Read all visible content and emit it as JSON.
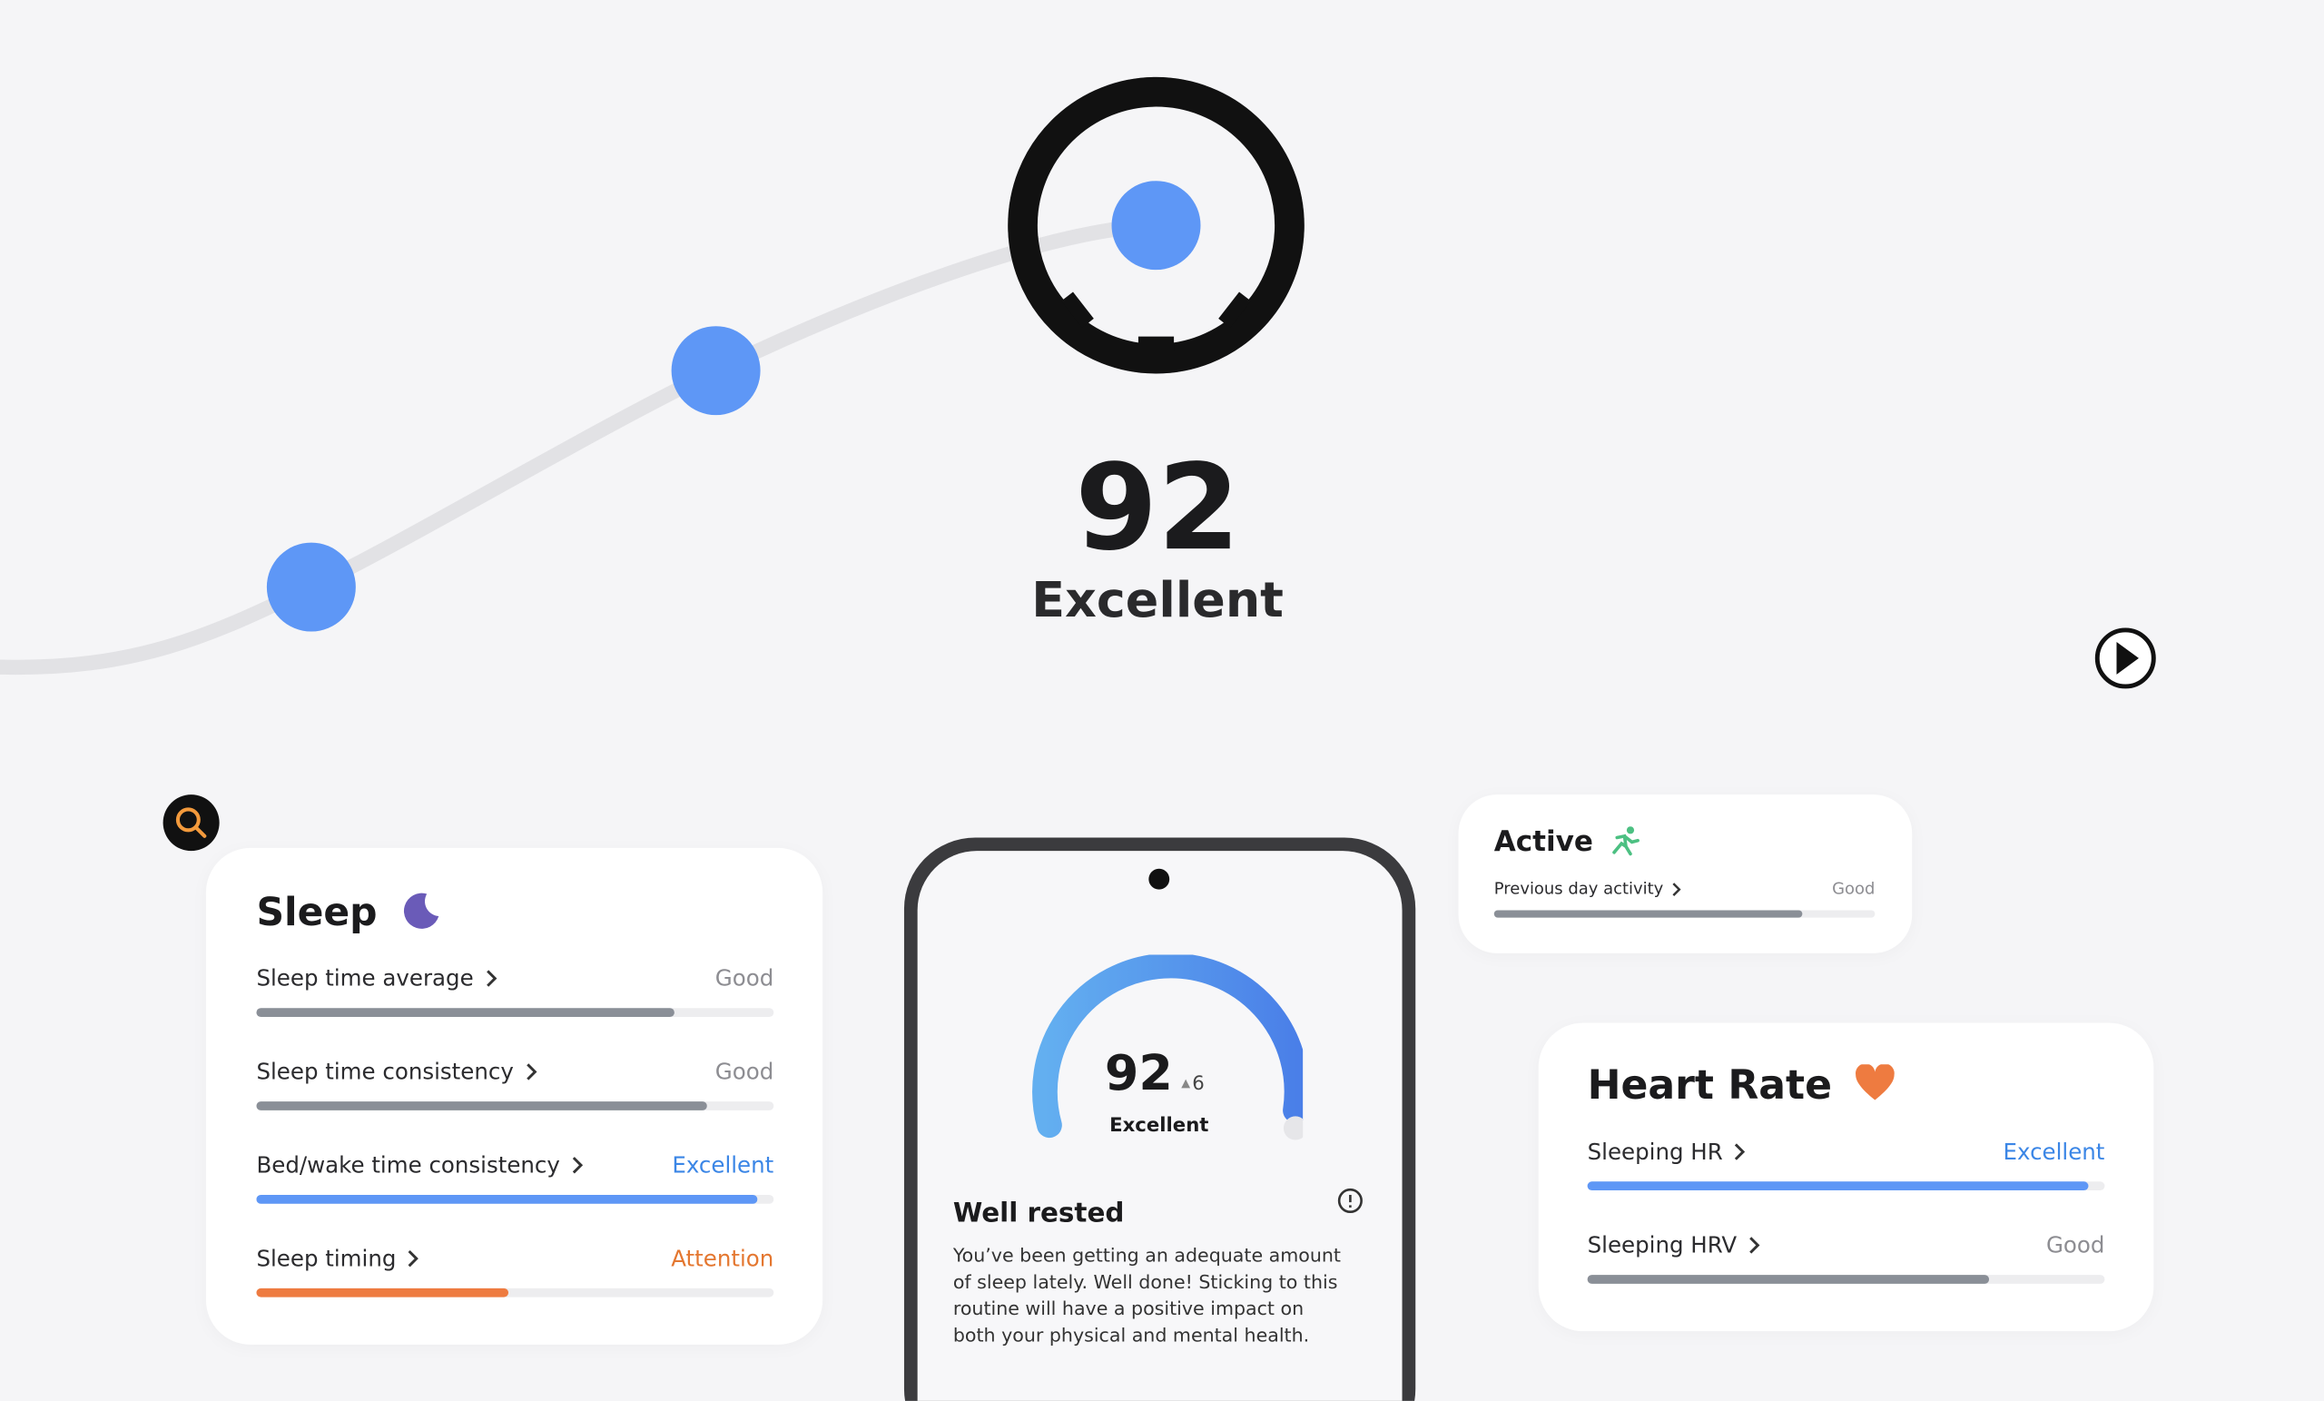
{
  "hero": {
    "score": 92,
    "rating": "Excellent"
  },
  "sleep_card": {
    "title": "Sleep",
    "rows": [
      {
        "label": "Sleep time average",
        "status": "Good"
      },
      {
        "label": "Sleep time consistency",
        "status": "Good"
      },
      {
        "label": "Bed/wake time consistency",
        "status": "Excellent"
      },
      {
        "label": "Sleep timing",
        "status": "Attention"
      }
    ]
  },
  "phone": {
    "score": 92,
    "change": 6,
    "rating": "Excellent",
    "heading": "Well rested",
    "body": "You’ve been getting an adequate amount of sleep lately. Well done! Sticking to this routine will have a positive impact on both your physical and mental health."
  },
  "active_card": {
    "title": "Active",
    "rows": [
      {
        "label": "Previous day activity",
        "status": "Good"
      }
    ]
  },
  "heart_rate_card": {
    "title": "Heart Rate",
    "rows": [
      {
        "label": "Sleeping HR",
        "status": "Excellent"
      },
      {
        "label": "Sleeping HRV",
        "status": "Good"
      }
    ]
  }
}
